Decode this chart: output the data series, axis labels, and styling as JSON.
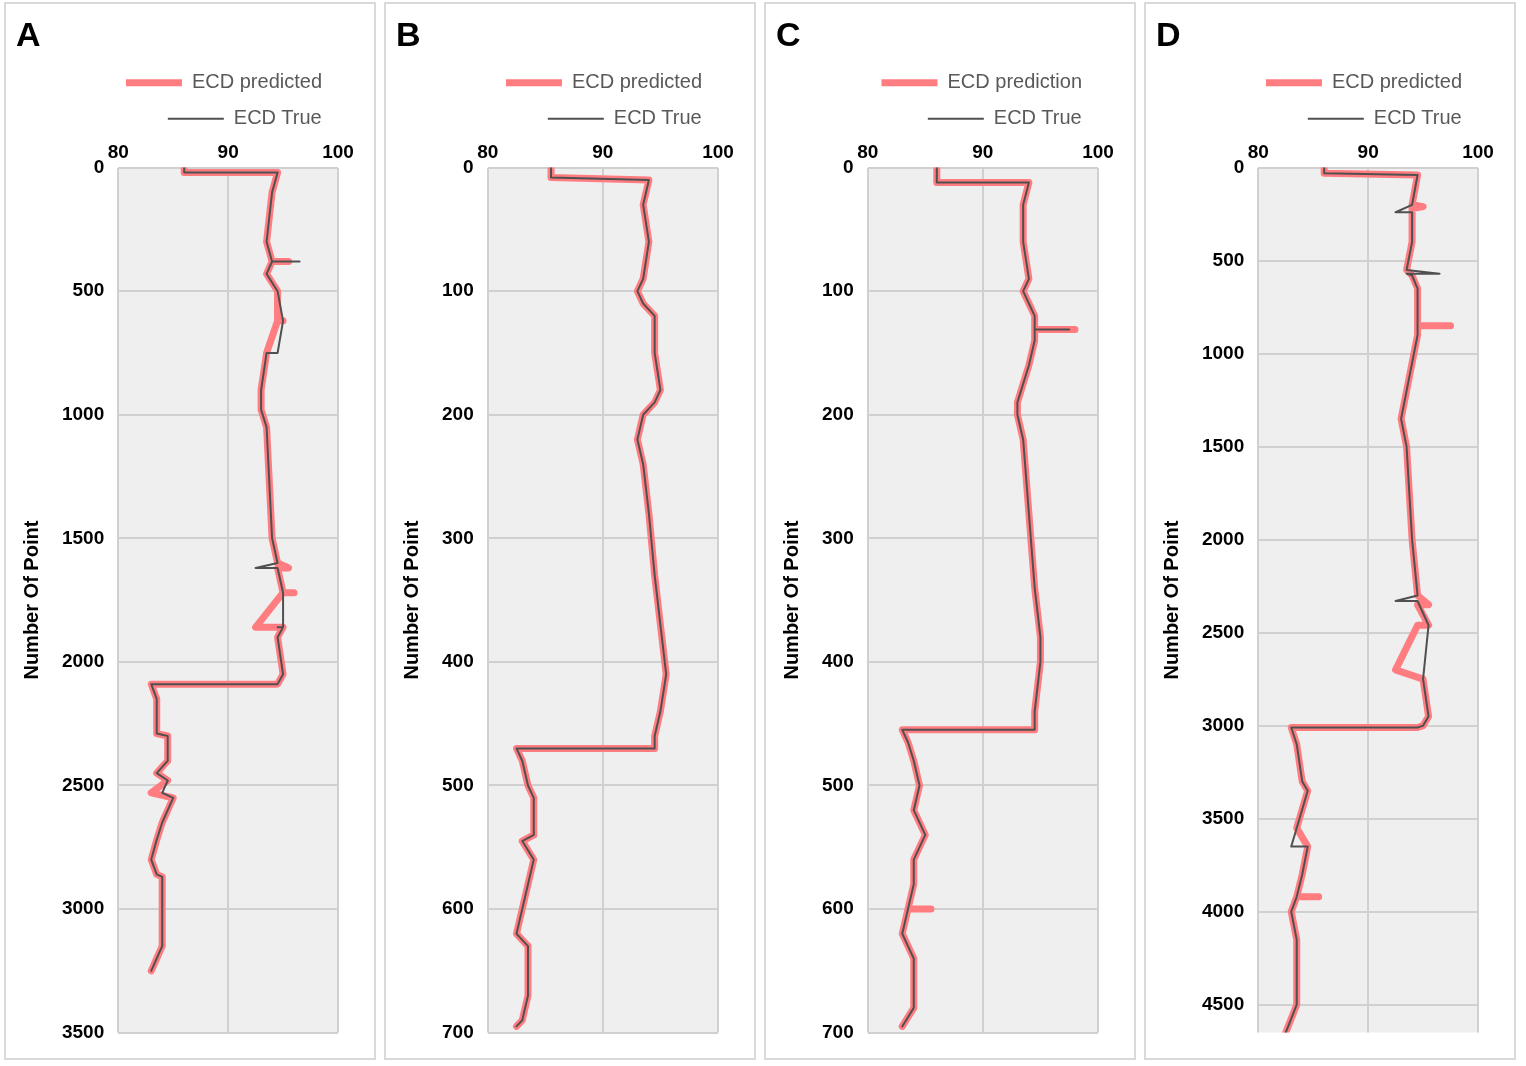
{
  "chart_data": [
    {
      "type": "line",
      "title": "A",
      "ylabel": "Number Of Point",
      "xlim": [
        80,
        100
      ],
      "xticks": [
        80,
        90,
        100
      ],
      "ylim": [
        3500,
        0
      ],
      "yticks": [
        0,
        500,
        1000,
        1500,
        2000,
        2500,
        3000,
        3500
      ],
      "grid": true,
      "legend": "top right",
      "series": [
        {
          "name": "ECD predicted",
          "color": "#ff7c80",
          "x": [
            86,
            86,
            94.5,
            94,
            93.5,
            94,
            95.5,
            94,
            93.5,
            94.5,
            94.5,
            95,
            94.5,
            93.5,
            93,
            93,
            93.5,
            94,
            94.5,
            95.5,
            94.5,
            95,
            96,
            95,
            92.5,
            95,
            94.5,
            95,
            94.5,
            83,
            83.5,
            83.5,
            84.5,
            84.5,
            83.5,
            84.5,
            83,
            85,
            84,
            83.5,
            83,
            83.5,
            84,
            84,
            83.5,
            83
          ],
          "values": [
            0,
            20,
            20,
            100,
            300,
            380,
            380,
            380,
            430,
            500,
            620,
            620,
            620,
            750,
            900,
            980,
            1050,
            1500,
            1600,
            1620,
            1620,
            1720,
            1720,
            1720,
            1860,
            1860,
            1900,
            2050,
            2090,
            2090,
            2150,
            2290,
            2300,
            2400,
            2450,
            2480,
            2530,
            2550,
            2650,
            2720,
            2800,
            2860,
            2870,
            3150,
            3200,
            3250
          ]
        },
        {
          "name": "ECD True",
          "color": "#505050",
          "x": [
            86,
            86,
            94.5,
            94,
            93.5,
            94,
            96.5,
            94,
            93.5,
            94.5,
            95,
            94.5,
            93.5,
            93,
            93,
            93.5,
            94,
            94.5,
            92.5,
            94.5,
            95,
            95,
            94.5,
            95,
            94.5,
            95,
            94.5,
            83,
            83.5,
            83.5,
            84.5,
            84.5,
            83.5,
            84.5,
            84,
            85,
            84,
            83.5,
            83,
            83.5,
            84,
            84,
            83.5,
            83
          ],
          "values": [
            0,
            20,
            20,
            100,
            300,
            380,
            380,
            380,
            430,
            500,
            620,
            750,
            750,
            900,
            980,
            1050,
            1500,
            1600,
            1620,
            1620,
            1720,
            1860,
            1860,
            1860,
            1900,
            2050,
            2090,
            2090,
            2150,
            2290,
            2300,
            2400,
            2450,
            2480,
            2530,
            2550,
            2650,
            2720,
            2800,
            2860,
            2870,
            3150,
            3200,
            3250
          ]
        }
      ]
    },
    {
      "type": "line",
      "title": "B",
      "ylabel": "Number Of Point",
      "xlim": [
        80,
        100
      ],
      "xticks": [
        80,
        90,
        100
      ],
      "ylim": [
        700,
        0
      ],
      "yticks": [
        0,
        100,
        200,
        300,
        400,
        500,
        600,
        700
      ],
      "grid": true,
      "legend": "top right",
      "series": [
        {
          "name": "ECD predicted",
          "color": "#ff7c80",
          "x": [
            85.5,
            85.5,
            94,
            93.5,
            94,
            93.5,
            93,
            93.5,
            94.5,
            94.5,
            95,
            94.5,
            93.5,
            93,
            93.5,
            94,
            94.5,
            95,
            95.5,
            95,
            94.5,
            94.5,
            82.5,
            83,
            83.5,
            84,
            84,
            83,
            84,
            83.5,
            83,
            82.5,
            83.5,
            83.5,
            83,
            82.5
          ],
          "values": [
            0,
            8,
            10,
            30,
            60,
            90,
            100,
            110,
            120,
            150,
            180,
            190,
            200,
            220,
            240,
            280,
            330,
            370,
            410,
            440,
            460,
            470,
            470,
            480,
            500,
            510,
            540,
            545,
            560,
            580,
            600,
            620,
            630,
            670,
            690,
            695
          ]
        },
        {
          "name": "ECD True",
          "color": "#505050",
          "x": [
            85.5,
            85.5,
            94,
            93.5,
            94,
            93.5,
            93,
            93.5,
            94.5,
            94.5,
            95,
            94.5,
            93.5,
            93,
            93.5,
            94,
            94.5,
            95,
            95.5,
            95,
            94.5,
            94.5,
            82.5,
            83,
            83.5,
            84,
            84,
            83,
            84,
            83.5,
            83,
            82.5,
            83.5,
            83.5,
            83,
            82.5
          ],
          "values": [
            0,
            8,
            10,
            30,
            60,
            90,
            100,
            110,
            120,
            150,
            180,
            190,
            200,
            220,
            240,
            280,
            330,
            370,
            410,
            440,
            460,
            470,
            470,
            480,
            500,
            510,
            540,
            545,
            560,
            580,
            600,
            620,
            630,
            670,
            690,
            695
          ]
        }
      ]
    },
    {
      "type": "line",
      "title": "C",
      "ylabel": "Number Of Point",
      "xlim": [
        80,
        100
      ],
      "xticks": [
        80,
        90,
        100
      ],
      "ylim": [
        700,
        0
      ],
      "yticks": [
        0,
        100,
        200,
        300,
        400,
        500,
        600,
        700
      ],
      "grid": true,
      "legend": "top right",
      "series": [
        {
          "name": "ECD prediction",
          "color": "#ff7c80",
          "x": [
            86,
            86,
            94,
            93.5,
            93.5,
            94,
            93.5,
            94,
            94.5,
            94.5,
            98,
            94.5,
            94.5,
            94,
            93,
            93,
            93.5,
            94,
            94.5,
            95,
            95,
            94.5,
            94.5,
            83,
            83.5,
            84,
            84.5,
            84,
            85,
            84,
            84,
            83.5,
            85.5,
            83.5,
            83,
            83.5,
            84,
            84,
            83
          ],
          "values": [
            0,
            12,
            12,
            30,
            60,
            90,
            100,
            110,
            120,
            131,
            131,
            131,
            140,
            160,
            190,
            200,
            220,
            280,
            340,
            380,
            400,
            440,
            455,
            455,
            465,
            480,
            500,
            520,
            540,
            560,
            580,
            600,
            600,
            600,
            620,
            630,
            640,
            680,
            695
          ]
        },
        {
          "name": "ECD True",
          "color": "#505050",
          "x": [
            86,
            86,
            94,
            93.5,
            93.5,
            94,
            93.5,
            94,
            94.5,
            94.5,
            97.5,
            94.5,
            94.5,
            94,
            93,
            93,
            93.5,
            94,
            94.5,
            95,
            95,
            94.5,
            94.5,
            83,
            83.5,
            84,
            84.5,
            84,
            85,
            84,
            84,
            83.5,
            83,
            83.5,
            84,
            84,
            83
          ],
          "values": [
            0,
            12,
            12,
            30,
            60,
            90,
            100,
            110,
            120,
            131,
            131,
            131,
            140,
            160,
            190,
            200,
            220,
            280,
            340,
            380,
            400,
            440,
            455,
            455,
            465,
            480,
            500,
            520,
            540,
            560,
            580,
            600,
            620,
            630,
            640,
            680,
            695
          ]
        }
      ]
    },
    {
      "type": "line",
      "title": "D",
      "ylabel": "Number Of Point",
      "xlim": [
        80,
        100
      ],
      "xticks": [
        80,
        90,
        100
      ],
      "ylim": [
        4650,
        0
      ],
      "yticks": [
        0,
        500,
        1000,
        1500,
        2000,
        2500,
        3000,
        3500,
        4000,
        4500
      ],
      "grid": true,
      "legend": "top right",
      "series": [
        {
          "name": "ECD predicted",
          "color": "#ff7c80",
          "x": [
            86,
            86,
            94.5,
            94,
            95,
            94,
            94,
            93.5,
            94,
            94.5,
            94.5,
            97.5,
            94.5,
            94.5,
            93.5,
            93,
            93.5,
            94,
            94.5,
            95.5,
            94.5,
            95.5,
            94.5,
            92.5,
            95,
            95.5,
            95,
            94.5,
            83,
            83.5,
            84,
            84.5,
            83.5,
            84.5,
            84,
            83.5,
            85.5,
            83.5,
            83,
            83.5,
            83.5,
            82.5
          ],
          "values": [
            0,
            30,
            40,
            200,
            210,
            220,
            400,
            550,
            580,
            650,
            850,
            850,
            850,
            900,
            1200,
            1350,
            1500,
            2000,
            2300,
            2350,
            2350,
            2460,
            2460,
            2700,
            2750,
            2950,
            3000,
            3010,
            3010,
            3100,
            3300,
            3350,
            3550,
            3650,
            3800,
            3920,
            3920,
            3920,
            4000,
            4150,
            4500,
            4650
          ]
        },
        {
          "name": "ECD True",
          "color": "#505050",
          "x": [
            86,
            86,
            94.5,
            94,
            92.5,
            94,
            94,
            93.5,
            96.5,
            93.5,
            94,
            94.5,
            94.5,
            93.5,
            93,
            93.5,
            94,
            94.5,
            92.5,
            94.5,
            95.5,
            95,
            95.5,
            95,
            94.5,
            83,
            83.5,
            84,
            84.5,
            83.5,
            83,
            84.5,
            84,
            83.5,
            83,
            83.5,
            83.5,
            82.5
          ],
          "values": [
            0,
            30,
            40,
            200,
            240,
            240,
            400,
            550,
            570,
            570,
            580,
            650,
            900,
            1200,
            1350,
            1500,
            2000,
            2300,
            2330,
            2330,
            2460,
            2750,
            2950,
            3000,
            3010,
            3010,
            3100,
            3300,
            3350,
            3550,
            3650,
            3650,
            3800,
            3920,
            4000,
            4150,
            4500,
            4650
          ]
        }
      ]
    }
  ]
}
